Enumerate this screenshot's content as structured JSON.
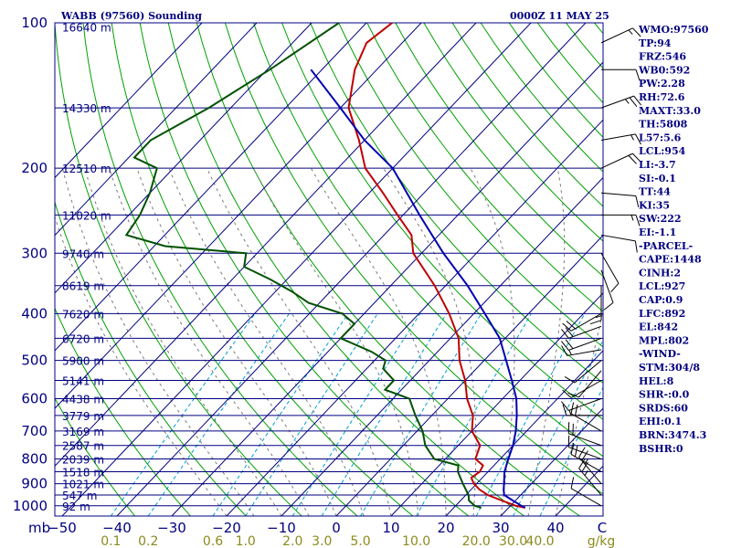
{
  "header": {
    "station_title": "WABB (97560) Sounding",
    "time_title": "0000Z 11 MAY 25"
  },
  "indices": [
    "WMO:97560",
    "TP:94",
    "FRZ:546",
    "WB0:592",
    "PW:2.28",
    "RH:72.6",
    "MAXT:33.0",
    "TH:5808",
    "L57:5.6",
    "LCL:954",
    "LI:-3.7",
    "SI:-0.1",
    "TT:44",
    "KI:35",
    "SW:222",
    "EI:-1.1",
    "-PARCEL-",
    "CAPE:1448",
    "CINH:2",
    "LCL:927",
    "CAP:0.9",
    "LFC:892",
    "EL:842",
    "MPL:802",
    "-WIND-",
    "STM:304/8",
    "HEL:8",
    "SHR-:0.0",
    "SRDS:60",
    "EHI:0.1",
    "BRN:3474.3",
    "BSHR:0"
  ],
  "colors": {
    "isobar": "#000080",
    "isotherm": "#000080",
    "dry_adiabat": "#00a000",
    "moist_adiabat": "#7a7a7a",
    "mixing_ratio": "#00a0d0",
    "temperature": "#c00000",
    "dewpoint": "#005000",
    "parcel": "#0000b0"
  },
  "chart_data": {
    "type": "skew-t",
    "x_axis": {
      "label": "C",
      "ticks": [
        "-50",
        "-40",
        "-30",
        "-20",
        "-10",
        "0",
        "10",
        "20",
        "30",
        "40"
      ]
    },
    "y_axis": {
      "label": "mb",
      "pressure_levels": [
        100,
        200,
        300,
        400,
        500,
        600,
        700,
        800,
        900,
        1000
      ],
      "range_mb": [
        100,
        1050
      ]
    },
    "mixing_ratio_axis": {
      "label": "g/kg",
      "ticks": [
        "0.1",
        "0.2",
        "0.6",
        "1.0",
        "2.0",
        "3.0",
        "5.0",
        "10.0",
        "20.0",
        "30.0",
        "40.0"
      ]
    },
    "height_labels": [
      {
        "p": 102,
        "label": "16640 m"
      },
      {
        "p": 150,
        "label": "14330 m"
      },
      {
        "p": 200,
        "label": "12510 m"
      },
      {
        "p": 250,
        "label": "11020 m"
      },
      {
        "p": 300,
        "label": "9740 m"
      },
      {
        "p": 350,
        "label": "8619 m"
      },
      {
        "p": 400,
        "label": "7620 m"
      },
      {
        "p": 450,
        "label": "6720 m"
      },
      {
        "p": 500,
        "label": "5900 m"
      },
      {
        "p": 550,
        "label": "5141 m"
      },
      {
        "p": 600,
        "label": "4438 m"
      },
      {
        "p": 650,
        "label": "3779 m"
      },
      {
        "p": 700,
        "label": "3169 m"
      },
      {
        "p": 750,
        "label": "2587 m"
      },
      {
        "p": 800,
        "label": "2039 m"
      },
      {
        "p": 850,
        "label": "1518 m"
      },
      {
        "p": 900,
        "label": "1021 m"
      },
      {
        "p": 950,
        "label": "547 m"
      },
      {
        "p": 1000,
        "label": "92 m"
      }
    ],
    "series": [
      {
        "name": "temperature",
        "points": [
          [
            100,
            -75.3
          ],
          [
            110,
            -76.5
          ],
          [
            125,
            -74.0
          ],
          [
            150,
            -68.5
          ],
          [
            175,
            -61.0
          ],
          [
            200,
            -55.0
          ],
          [
            225,
            -47.5
          ],
          [
            250,
            -41.0
          ],
          [
            275,
            -35.0
          ],
          [
            300,
            -31.5
          ],
          [
            350,
            -22.0
          ],
          [
            400,
            -14.5
          ],
          [
            450,
            -8.5
          ],
          [
            500,
            -4.5
          ],
          [
            550,
            0.0
          ],
          [
            600,
            3.5
          ],
          [
            650,
            7.5
          ],
          [
            700,
            10.0
          ],
          [
            750,
            14.0
          ],
          [
            800,
            15.5
          ],
          [
            825,
            18.0
          ],
          [
            850,
            18.5
          ],
          [
            875,
            18.0
          ],
          [
            900,
            19.5
          ],
          [
            925,
            21.5
          ],
          [
            950,
            24.0
          ],
          [
            975,
            27.5
          ],
          [
            1000,
            31.0
          ],
          [
            1009,
            33.0
          ]
        ]
      },
      {
        "name": "dewpoint",
        "points": [
          [
            100,
            -85.0
          ],
          [
            125,
            -89.5
          ],
          [
            150,
            -94.0
          ],
          [
            175,
            -99.0
          ],
          [
            190,
            -99.0
          ],
          [
            200,
            -93.0
          ],
          [
            225,
            -90.0
          ],
          [
            250,
            -88.0
          ],
          [
            275,
            -87.0
          ],
          [
            290,
            -78.0
          ],
          [
            300,
            -62.0
          ],
          [
            320,
            -60.0
          ],
          [
            340,
            -53.0
          ],
          [
            360,
            -47.0
          ],
          [
            380,
            -42.0
          ],
          [
            400,
            -34.0
          ],
          [
            420,
            -30.0
          ],
          [
            450,
            -30.0
          ],
          [
            480,
            -22.0
          ],
          [
            500,
            -18.0
          ],
          [
            520,
            -17.0
          ],
          [
            550,
            -13.0
          ],
          [
            575,
            -13.0
          ],
          [
            600,
            -7.0
          ],
          [
            650,
            -3.0
          ],
          [
            700,
            1.0
          ],
          [
            750,
            4.0
          ],
          [
            800,
            8.0
          ],
          [
            825,
            13.5
          ],
          [
            850,
            14.5
          ],
          [
            900,
            17.5
          ],
          [
            950,
            20.5
          ],
          [
            975,
            21.5
          ],
          [
            1000,
            23.5
          ],
          [
            1009,
            25.0
          ]
        ]
      },
      {
        "name": "parcel",
        "points": [
          [
            125,
            -82.0
          ],
          [
            150,
            -70.0
          ],
          [
            175,
            -60.0
          ],
          [
            200,
            -50.0
          ],
          [
            250,
            -37.0
          ],
          [
            300,
            -26.0
          ],
          [
            350,
            -16.0
          ],
          [
            400,
            -8.0
          ],
          [
            450,
            -1.0
          ],
          [
            500,
            4.0
          ],
          [
            550,
            8.5
          ],
          [
            600,
            12.5
          ],
          [
            650,
            15.5
          ],
          [
            700,
            18.0
          ],
          [
            750,
            20.0
          ],
          [
            800,
            21.5
          ],
          [
            850,
            23.0
          ],
          [
            900,
            25.0
          ],
          [
            927,
            26.0
          ],
          [
            950,
            27.0
          ],
          [
            975,
            29.5
          ],
          [
            1000,
            32.0
          ],
          [
            1009,
            33.0
          ]
        ]
      }
    ],
    "wind_barbs": [
      {
        "p": 110,
        "dir": 65,
        "spd": 15
      },
      {
        "p": 125,
        "dir": 90,
        "spd": 10
      },
      {
        "p": 150,
        "dir": 70,
        "spd": 25
      },
      {
        "p": 175,
        "dir": 80,
        "spd": 15
      },
      {
        "p": 200,
        "dir": 65,
        "spd": 20
      },
      {
        "p": 225,
        "dir": 95,
        "spd": 10
      },
      {
        "p": 250,
        "dir": 90,
        "spd": 15
      },
      {
        "p": 275,
        "dir": 100,
        "spd": 10
      },
      {
        "p": 300,
        "dir": 150,
        "spd": 10
      },
      {
        "p": 325,
        "dir": 160,
        "spd": 10
      },
      {
        "p": 350,
        "dir": 180,
        "spd": 15
      },
      {
        "p": 400,
        "dir": 240,
        "spd": 20
      },
      {
        "p": 425,
        "dir": 250,
        "spd": 20
      },
      {
        "p": 450,
        "dir": 250,
        "spd": 20
      },
      {
        "p": 475,
        "dir": 260,
        "spd": 15
      },
      {
        "p": 500,
        "dir": 230,
        "spd": 10
      },
      {
        "p": 525,
        "dir": 220,
        "spd": 10
      },
      {
        "p": 550,
        "dir": 240,
        "spd": 10
      },
      {
        "p": 600,
        "dir": 250,
        "spd": 10
      },
      {
        "p": 650,
        "dir": 270,
        "spd": 15
      },
      {
        "p": 700,
        "dir": 300,
        "spd": 20
      },
      {
        "p": 750,
        "dir": 290,
        "spd": 20
      },
      {
        "p": 800,
        "dir": 290,
        "spd": 15
      },
      {
        "p": 850,
        "dir": 300,
        "spd": 20
      },
      {
        "p": 900,
        "dir": 320,
        "spd": 25
      },
      {
        "p": 950,
        "dir": 320,
        "spd": 25
      },
      {
        "p": 1000,
        "dir": 300,
        "spd": 10
      }
    ]
  }
}
